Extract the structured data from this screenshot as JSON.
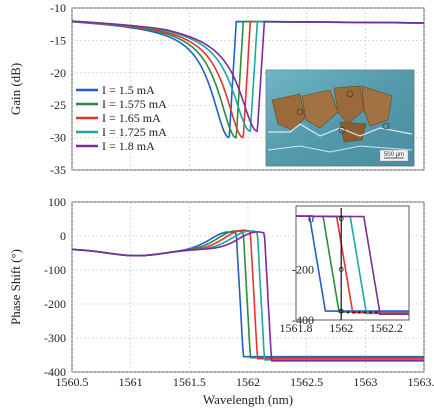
{
  "chart_data": [
    {
      "type": "line",
      "panel": "top",
      "xlabel": "",
      "ylabel": "Gain (dB)",
      "xlim": [
        1560.5,
        1563.5
      ],
      "ylim": [
        -35,
        -10
      ],
      "yticks": [
        -35,
        -30,
        -25,
        -20,
        -15,
        -10
      ],
      "legend_placement": "left-middle",
      "grid": true,
      "series": [
        {
          "name": "I = 1.5 mA",
          "color": "#1f5fc8",
          "dip_x": 1561.84,
          "dip_y": -30.0,
          "jump_x": 1561.9
        },
        {
          "name": "I = 1.575 mA",
          "color": "#2e8b3c",
          "dip_x": 1561.9,
          "dip_y": -30.0,
          "jump_x": 1561.96
        },
        {
          "name": "I = 1.65 mA",
          "color": "#e8342e",
          "dip_x": 1561.96,
          "dip_y": -30.0,
          "jump_x": 1562.02
        },
        {
          "name": "I = 1.725 mA",
          "color": "#1aa8a0",
          "dip_x": 1562.02,
          "dip_y": -29.0,
          "jump_x": 1562.08
        },
        {
          "name": "I = 1.8 mA",
          "color": "#7b2b9a",
          "dip_x": 1562.08,
          "dip_y": -29.0,
          "jump_x": 1562.14
        }
      ],
      "inset": {
        "kind": "micrograph",
        "scale_label": "500 μm"
      }
    },
    {
      "type": "line",
      "panel": "bottom",
      "xlabel": "Wavelength (nm)",
      "ylabel": "Phase Shift (°)",
      "xlim": [
        1560.5,
        1563.5
      ],
      "ylim": [
        -400,
        100
      ],
      "xticks": [
        1560.5,
        1561,
        1561.5,
        1562,
        1562.5,
        1563,
        1563.5
      ],
      "xtick_labels": [
        "1560.5",
        "1561",
        "1561.5",
        "1562",
        "1562.5",
        "1563",
        "1563.5"
      ],
      "yticks": [
        -400,
        -300,
        -200,
        -100,
        0,
        100
      ],
      "grid": true,
      "series": [
        {
          "name": "I = 1.5 mA",
          "color": "#1f5fc8",
          "peak_x": 1561.84,
          "peak_y": 5,
          "step_x": 1561.92
        },
        {
          "name": "I = 1.575 mA",
          "color": "#2e8b3c",
          "peak_x": 1561.9,
          "peak_y": 8,
          "step_x": 1561.98
        },
        {
          "name": "I = 1.65 mA",
          "color": "#e8342e",
          "peak_x": 1561.96,
          "peak_y": 10,
          "step_x": 1562.04
        },
        {
          "name": "I = 1.725 mA",
          "color": "#1aa8a0",
          "peak_x": 1562.02,
          "peak_y": 8,
          "step_x": 1562.1
        },
        {
          "name": "I = 1.8 mA",
          "color": "#7b2b9a",
          "peak_x": 1562.08,
          "peak_y": 5,
          "step_x": 1562.16
        }
      ],
      "inset": {
        "xlim": [
          1561.8,
          1562.3
        ],
        "ylim": [
          -400,
          50
        ],
        "xticks": [
          1561.8,
          1562,
          1562.2
        ],
        "xtick_labels": [
          "1561.8",
          "1562",
          "1562.2"
        ],
        "yticks": [
          -400,
          -200,
          0
        ],
        "marker_x": 1562.0
      }
    }
  ]
}
